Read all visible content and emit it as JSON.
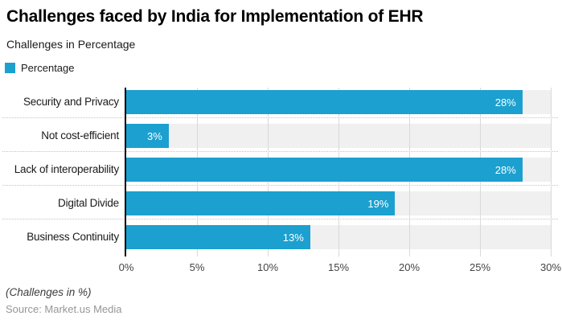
{
  "header": {
    "title": "Challenges faced by India for Implementation of EHR",
    "subtitle": "Challenges in Percentage"
  },
  "legend": {
    "label": "Percentage",
    "color": "#1ba0cf"
  },
  "chart_data": {
    "type": "bar",
    "orientation": "horizontal",
    "title": "Challenges faced by India for Implementation of EHR",
    "subtitle": "Challenges in Percentage",
    "series_name": "Percentage",
    "categories": [
      "Security and Privacy",
      "Not cost-efficient",
      "Lack of interoperability",
      "Digital Divide",
      "Business Continuity"
    ],
    "values": [
      28,
      3,
      28,
      19,
      13
    ],
    "value_labels": [
      "28%",
      "3%",
      "28%",
      "19%",
      "13%"
    ],
    "xlim": [
      0,
      30
    ],
    "x_ticks": [
      0,
      5,
      10,
      15,
      20,
      25,
      30
    ],
    "x_tick_labels": [
      "0%",
      "5%",
      "10%",
      "15%",
      "20%",
      "25%",
      "30%"
    ],
    "grid": true,
    "legend_position": "top-left",
    "bar_color": "#1ba0cf",
    "track_color": "#f0f0f0",
    "gridline_color": "#d9d9d9"
  },
  "footer": {
    "note": "(Challenges in %)",
    "source": "Source: Market.us Media"
  }
}
